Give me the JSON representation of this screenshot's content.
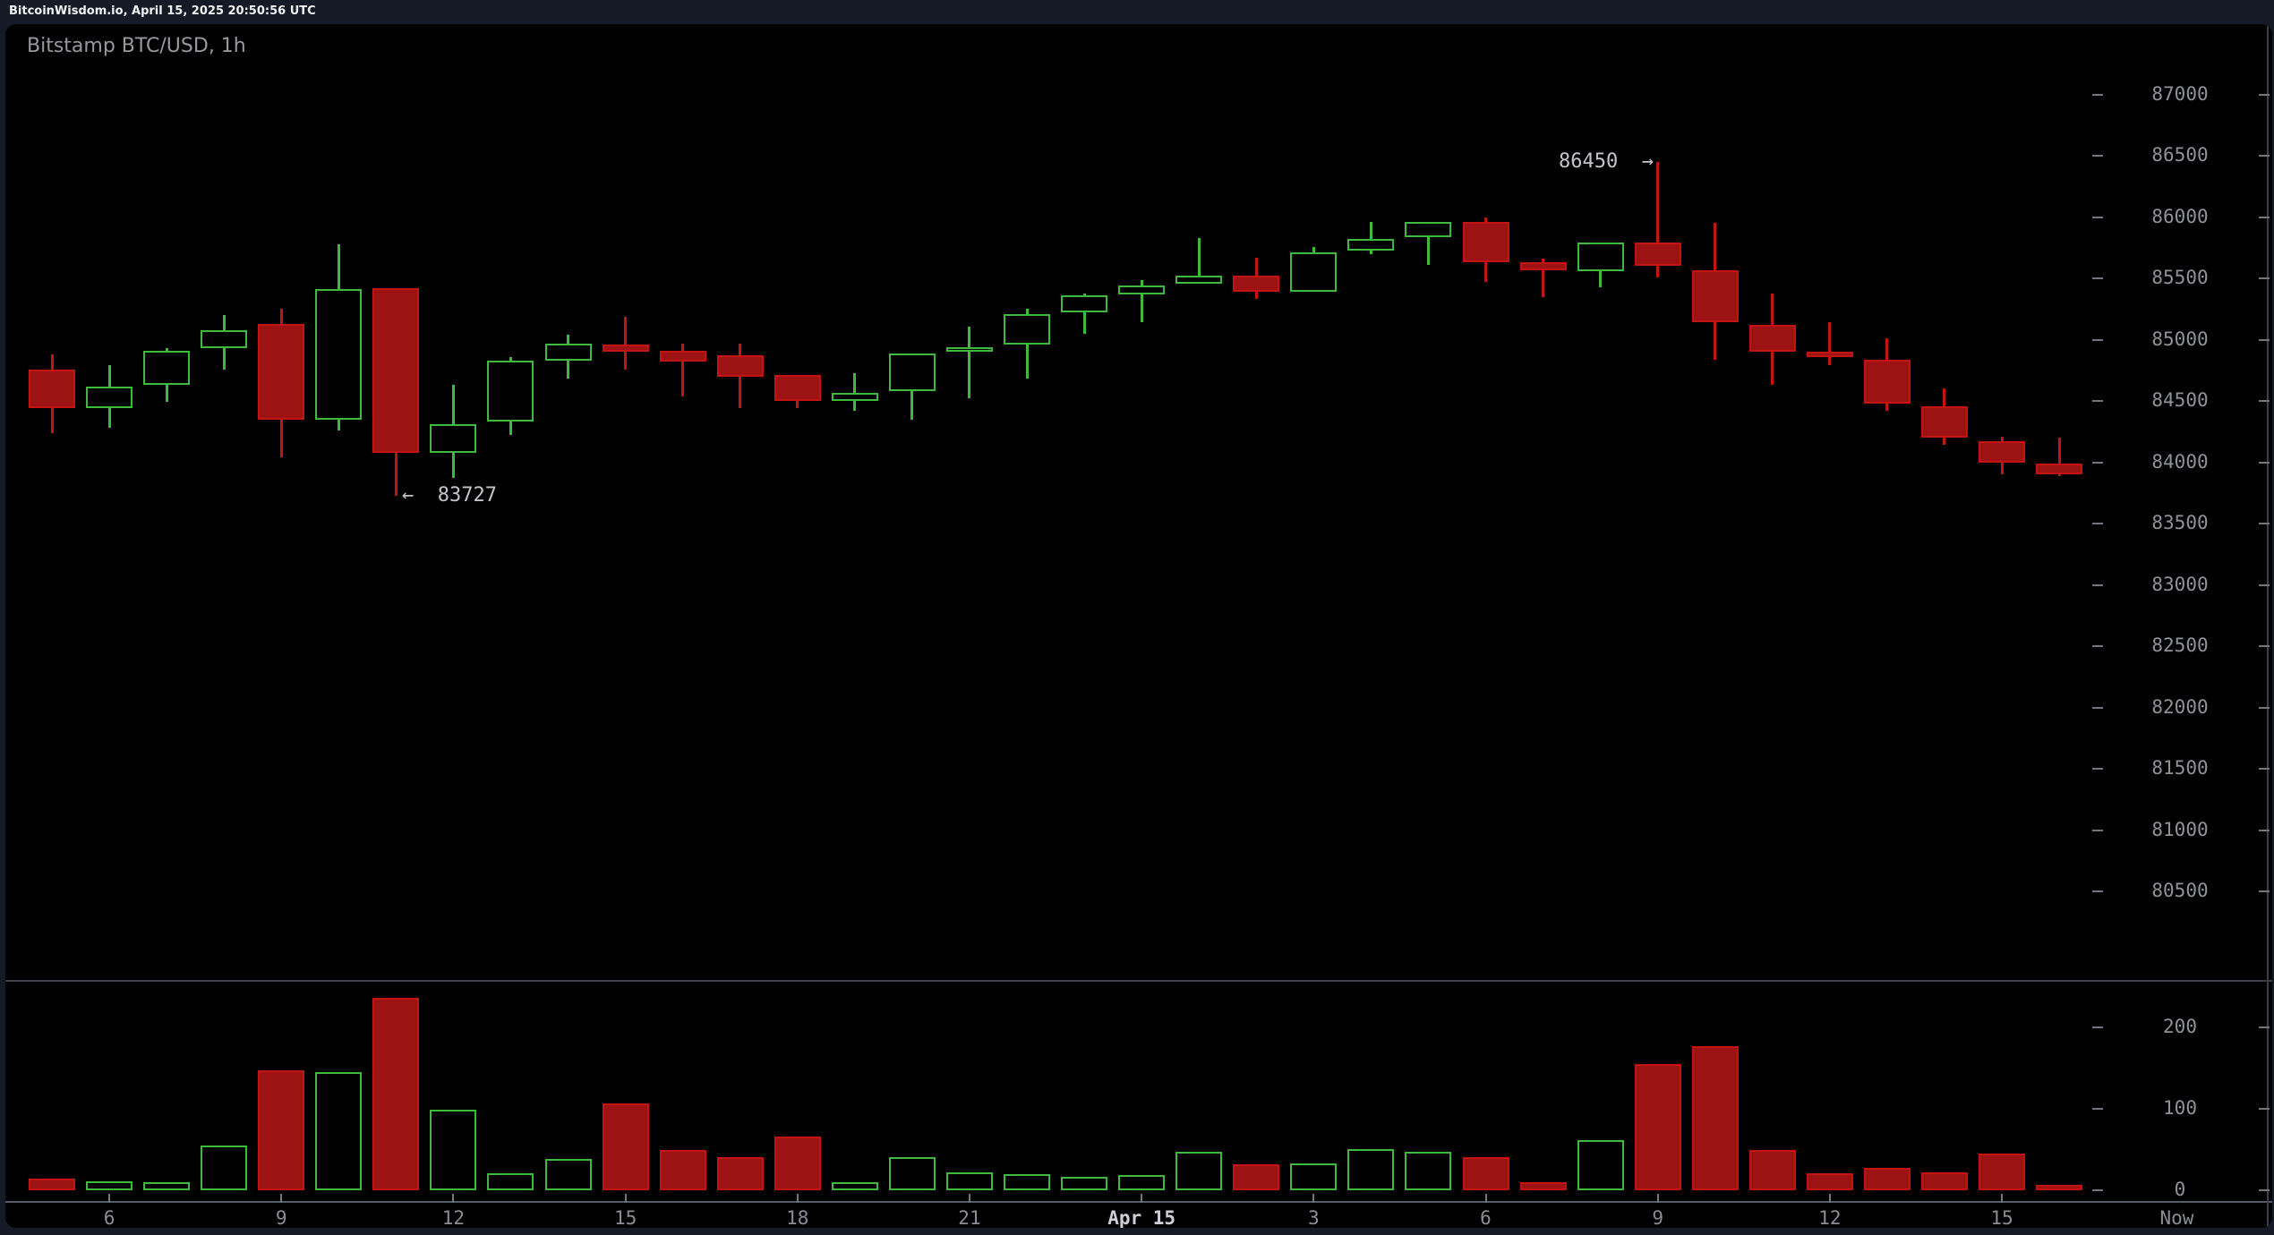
{
  "top_bar": {
    "text": "BitcoinWisdom.io, April 15, 2025 20:50:56 UTC"
  },
  "chart": {
    "title": "Bitstamp BTC/USD, 1h"
  },
  "annotations": {
    "low": {
      "text": "←  83727",
      "price": 83727
    },
    "high": {
      "text": "86450  →",
      "price": 86450
    }
  },
  "colors": {
    "up": "#3eb93e",
    "down_border": "#c31414",
    "down_fill": "#9d1212",
    "canvas_bg": "#000000",
    "frame_bg": "#151a27",
    "axis_text": "#8f9399",
    "bright_label": "#cdd0d6",
    "grid_line": "#3c4049",
    "tick": "#72767e"
  },
  "price_axis": {
    "ticks": [
      87000,
      86500,
      86000,
      85500,
      85000,
      84500,
      84000,
      83500,
      83000,
      82500,
      82000,
      81500,
      81000,
      80500
    ]
  },
  "volume_axis": {
    "ticks": [
      200,
      100,
      0
    ]
  },
  "time_axis": {
    "now_label": "Now",
    "labels": [
      {
        "text": "6",
        "ci": 1,
        "bold": false
      },
      {
        "text": "9",
        "ci": 4,
        "bold": false
      },
      {
        "text": "12",
        "ci": 7,
        "bold": false
      },
      {
        "text": "15",
        "ci": 10,
        "bold": false
      },
      {
        "text": "18",
        "ci": 13,
        "bold": false
      },
      {
        "text": "21",
        "ci": 16,
        "bold": false
      },
      {
        "text": "Apr 15",
        "ci": 19,
        "bold": true
      },
      {
        "text": "3",
        "ci": 22,
        "bold": false
      },
      {
        "text": "6",
        "ci": 25,
        "bold": false
      },
      {
        "text": "9",
        "ci": 28,
        "bold": false
      },
      {
        "text": "12",
        "ci": 31,
        "bold": false
      },
      {
        "text": "15",
        "ci": 34,
        "bold": false
      },
      {
        "text": "Now",
        "ci": 37.05,
        "bold": false,
        "is_now": true
      }
    ]
  },
  "chart_data": {
    "type": "candlestick+volume",
    "title": "Bitstamp BTC/USD, 1h",
    "price_axis_range": [
      80500,
      87000
    ],
    "volume_axis_range": [
      0,
      230
    ],
    "annotated_low": 83727,
    "annotated_high": 86450,
    "candles_ohlcv": [
      [
        84760,
        84880,
        84240,
        84440,
        14
      ],
      [
        84440,
        84790,
        84280,
        84620,
        11
      ],
      [
        84630,
        84930,
        84490,
        84910,
        10
      ],
      [
        84930,
        85200,
        84760,
        85080,
        55
      ],
      [
        85130,
        85250,
        84040,
        84350,
        147
      ],
      [
        84350,
        85780,
        84260,
        85410,
        145
      ],
      [
        85420,
        85420,
        83727,
        84080,
        236
      ],
      [
        84080,
        84630,
        83870,
        84310,
        99
      ],
      [
        84330,
        84860,
        84220,
        84830,
        21
      ],
      [
        84830,
        85040,
        84680,
        84970,
        38
      ],
      [
        84960,
        85190,
        84760,
        84900,
        107
      ],
      [
        84910,
        84970,
        84540,
        84820,
        49
      ],
      [
        84870,
        84970,
        84440,
        84700,
        41
      ],
      [
        84710,
        84710,
        84440,
        84500,
        66
      ],
      [
        84500,
        84730,
        84420,
        84570,
        10
      ],
      [
        84580,
        84890,
        84350,
        84890,
        41
      ],
      [
        84900,
        85110,
        84520,
        84940,
        22
      ],
      [
        84960,
        85250,
        84680,
        85210,
        20
      ],
      [
        85220,
        85380,
        85050,
        85360,
        16
      ],
      [
        85370,
        85490,
        85140,
        85440,
        19
      ],
      [
        85460,
        85830,
        85460,
        85520,
        47
      ],
      [
        85520,
        85670,
        85330,
        85390,
        32
      ],
      [
        85390,
        85760,
        85390,
        85710,
        33
      ],
      [
        85730,
        85960,
        85700,
        85820,
        51
      ],
      [
        85840,
        85960,
        85610,
        85960,
        47
      ],
      [
        85960,
        86000,
        85470,
        85630,
        41
      ],
      [
        85630,
        85660,
        85350,
        85570,
        10
      ],
      [
        85560,
        85790,
        85430,
        85790,
        62
      ],
      [
        85790,
        86450,
        85510,
        85600,
        155
      ],
      [
        85570,
        85950,
        84840,
        85140,
        177
      ],
      [
        85120,
        85380,
        84630,
        84900,
        50
      ],
      [
        84900,
        85140,
        84790,
        84860,
        21
      ],
      [
        84840,
        85010,
        84420,
        84480,
        27
      ],
      [
        84460,
        84600,
        84140,
        84200,
        22
      ],
      [
        84170,
        84210,
        83900,
        84000,
        45
      ],
      [
        83990,
        84200,
        83890,
        83900,
        7
      ]
    ]
  }
}
